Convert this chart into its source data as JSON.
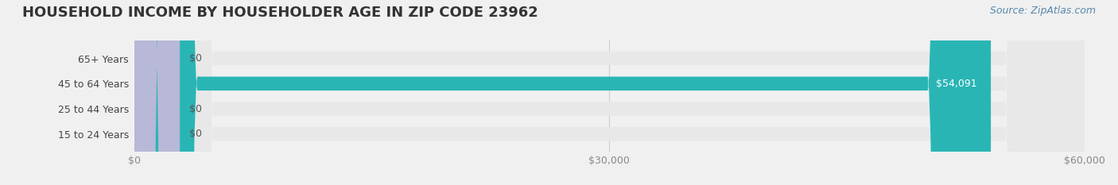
{
  "title": "HOUSEHOLD INCOME BY HOUSEHOLDER AGE IN ZIP CODE 23962",
  "source": "Source: ZipAtlas.com",
  "categories": [
    "15 to 24 Years",
    "25 to 44 Years",
    "45 to 64 Years",
    "65+ Years"
  ],
  "values": [
    0,
    0,
    54091,
    0
  ],
  "bar_colors": [
    "#a8b8d8",
    "#c8a8c8",
    "#2ab5b5",
    "#b8b8d8"
  ],
  "bar_label_colors": [
    "#555555",
    "#555555",
    "#ffffff",
    "#555555"
  ],
  "bar_labels": [
    "$0",
    "$0",
    "$54,091",
    "$0"
  ],
  "xlim": [
    0,
    60000
  ],
  "xticks": [
    0,
    30000,
    60000
  ],
  "xtick_labels": [
    "$0",
    "$30,000",
    "$60,000"
  ],
  "background_color": "#f0f0f0",
  "bar_bg_color": "#e8e8e8",
  "title_fontsize": 13,
  "source_fontsize": 9,
  "tick_fontsize": 9,
  "label_fontsize": 9,
  "bar_height": 0.55
}
